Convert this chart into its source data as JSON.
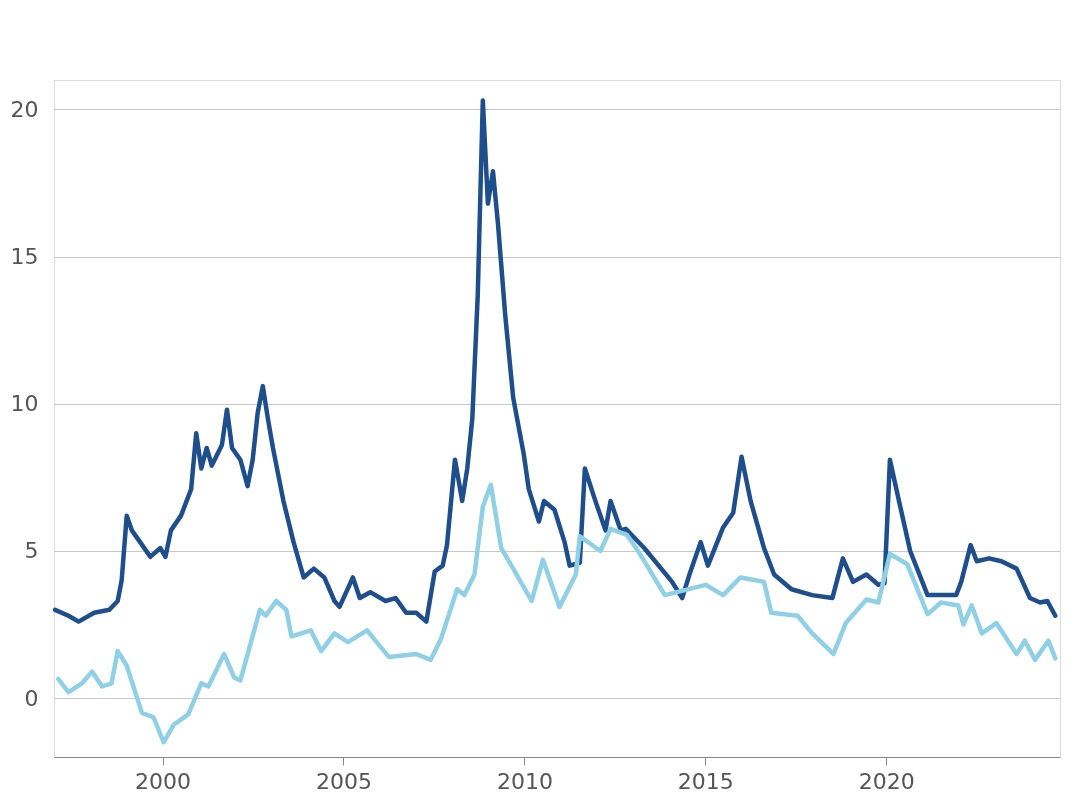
{
  "chart_data": {
    "type": "line",
    "xlim": [
      1997,
      2024.8
    ],
    "xticks": [
      2000,
      2005,
      2010,
      2015,
      2020
    ],
    "ylim": [
      -2,
      21
    ],
    "yticks": [
      0,
      5,
      10,
      15,
      20
    ],
    "grid": "y",
    "marker": "none",
    "line_style": "solid",
    "series": [
      {
        "color": "#1f4e8c",
        "x": [
          1997.03,
          1997.4,
          1997.68,
          1998.11,
          1998.53,
          1998.76,
          1998.87,
          1999.01,
          1999.15,
          1999.38,
          1999.66,
          1999.94,
          2000.08,
          2000.23,
          2000.51,
          2000.79,
          2000.93,
          2001.07,
          2001.22,
          2001.36,
          2001.64,
          2001.78,
          2001.92,
          2002.15,
          2002.35,
          2002.49,
          2002.63,
          2002.77,
          2002.91,
          2003.05,
          2003.34,
          2003.62,
          2003.9,
          2004.18,
          2004.47,
          2004.75,
          2004.89,
          2005.26,
          2005.45,
          2005.74,
          2006.16,
          2006.44,
          2006.73,
          2007.01,
          2007.29,
          2007.52,
          2007.74,
          2007.86,
          2008.08,
          2008.28,
          2008.42,
          2008.56,
          2008.71,
          2008.85,
          2008.99,
          2009.13,
          2009.27,
          2009.47,
          2009.69,
          2009.98,
          2010.12,
          2010.4,
          2010.54,
          2010.83,
          2011.11,
          2011.25,
          2011.53,
          2011.67,
          2011.96,
          2012.24,
          2012.38,
          2012.66,
          2012.8,
          2013.31,
          2014.08,
          2014.36,
          2014.56,
          2014.87,
          2015.07,
          2015.49,
          2015.77,
          2016.0,
          2016.25,
          2016.62,
          2016.9,
          2017.38,
          2017.95,
          2018.51,
          2018.8,
          2019.08,
          2019.45,
          2019.78,
          2019.95,
          2020.1,
          2020.35,
          2020.66,
          2021.14,
          2021.93,
          2022.07,
          2022.33,
          2022.5,
          2022.84,
          2023.18,
          2023.6,
          2023.97,
          2024.25,
          2024.45,
          2024.67
        ],
        "values": [
          3.0,
          2.8,
          2.6,
          2.9,
          3.0,
          3.3,
          4.0,
          6.2,
          5.7,
          5.3,
          4.8,
          5.1,
          4.8,
          5.7,
          6.2,
          7.1,
          9.0,
          7.8,
          8.5,
          7.9,
          8.6,
          9.8,
          8.5,
          8.1,
          7.2,
          8.1,
          9.7,
          10.6,
          9.5,
          8.5,
          6.7,
          5.3,
          4.1,
          4.4,
          4.1,
          3.3,
          3.1,
          4.1,
          3.4,
          3.6,
          3.3,
          3.4,
          2.9,
          2.9,
          2.6,
          4.3,
          4.5,
          5.2,
          8.1,
          6.7,
          7.8,
          9.5,
          13.7,
          20.3,
          16.8,
          17.9,
          16.1,
          13.0,
          10.2,
          8.3,
          7.1,
          6.0,
          6.7,
          6.4,
          5.3,
          4.5,
          4.6,
          7.8,
          6.7,
          5.7,
          6.7,
          5.7,
          5.75,
          5.1,
          3.95,
          3.4,
          4.2,
          5.3,
          4.5,
          5.8,
          6.3,
          8.2,
          6.7,
          5.1,
          4.2,
          3.7,
          3.5,
          3.4,
          4.75,
          3.95,
          4.2,
          3.85,
          3.9,
          8.1,
          6.7,
          5.0,
          3.5,
          3.5,
          3.95,
          5.2,
          4.65,
          4.75,
          4.65,
          4.4,
          3.4,
          3.25,
          3.3,
          2.8
        ]
      },
      {
        "color": "#8fd0e6",
        "x": [
          1997.12,
          1997.4,
          1997.77,
          1998.05,
          1998.33,
          1998.59,
          1998.76,
          1999.01,
          1999.43,
          1999.75,
          2000.03,
          2000.31,
          2000.71,
          2001.07,
          2001.27,
          2001.7,
          2001.98,
          2002.15,
          2002.69,
          2002.85,
          2003.14,
          2003.42,
          2003.56,
          2004.1,
          2004.38,
          2004.75,
          2005.12,
          2005.65,
          2006.25,
          2007.01,
          2007.41,
          2007.69,
          2008.14,
          2008.34,
          2008.62,
          2008.85,
          2009.07,
          2009.36,
          2009.69,
          2010.2,
          2010.51,
          2010.97,
          2011.42,
          2011.53,
          2012.1,
          2012.38,
          2012.83,
          2013.14,
          2013.88,
          2015.01,
          2015.49,
          2015.97,
          2016.62,
          2016.82,
          2017.55,
          2017.95,
          2018.54,
          2018.88,
          2019.45,
          2019.78,
          2020.1,
          2020.58,
          2021.14,
          2021.51,
          2021.99,
          2022.13,
          2022.36,
          2022.64,
          2023.04,
          2023.6,
          2023.83,
          2024.11,
          2024.48,
          2024.67
        ],
        "values": [
          0.65,
          0.2,
          0.5,
          0.9,
          0.4,
          0.5,
          1.6,
          1.1,
          -0.5,
          -0.65,
          -1.5,
          -0.9,
          -0.55,
          0.5,
          0.4,
          1.5,
          0.7,
          0.6,
          3.0,
          2.8,
          3.3,
          3.0,
          2.1,
          2.3,
          1.6,
          2.2,
          1.9,
          2.3,
          1.4,
          1.5,
          1.3,
          2.0,
          3.7,
          3.5,
          4.2,
          6.5,
          7.25,
          5.1,
          4.4,
          3.3,
          4.7,
          3.1,
          4.2,
          5.5,
          5.0,
          5.75,
          5.55,
          5.0,
          3.5,
          3.85,
          3.5,
          4.1,
          3.95,
          2.9,
          2.8,
          2.2,
          1.5,
          2.55,
          3.35,
          3.25,
          4.9,
          4.55,
          2.85,
          3.25,
          3.15,
          2.5,
          3.15,
          2.2,
          2.55,
          1.5,
          1.95,
          1.3,
          1.95,
          1.35
        ]
      }
    ]
  }
}
